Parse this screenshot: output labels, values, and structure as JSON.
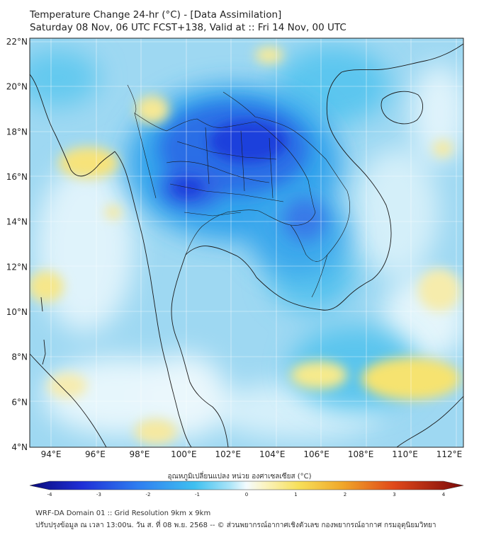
{
  "title_line1": "Temperature Change 24-hr (°C) - [Data Assimilation]",
  "title_line2": "Saturday 08 Nov, 06 UTC FCST+138, Valid at :: Fri 14 Nov, 00 UTC",
  "lat_labels": [
    "22°N",
    "20°N",
    "18°N",
    "16°N",
    "14°N",
    "12°N",
    "10°N",
    "8°N",
    "6°N",
    "4°N"
  ],
  "lon_labels": [
    "94°E",
    "96°E",
    "98°E",
    "100°E",
    "102°E",
    "104°E",
    "106°E",
    "108°E",
    "110°E",
    "112°E"
  ],
  "colorbar": {
    "caption": "อุณหภูมิเปลี่ยนแปลง หน่วย องศาเซลเซียส (°C)",
    "ticks": [
      "-4",
      "-3",
      "-2",
      "-1",
      "0",
      "1",
      "2",
      "3",
      "4"
    ],
    "range": [
      -4,
      4
    ]
  },
  "footer_line1": "WRF-DA Domain 01 :: Grid Resolution 9km x 9km",
  "footer_line2": "ปรับปรุงข้อมูล ณ เวลา 13:00น. วัน ส. ที่ 08 พ.ย. 2568 -- © ส่วนพยากรณ์อากาศเชิงตัวเลข กองพยากรณ์อากาศ กรมอุตุนิยมวิทยา",
  "colors": {
    "base_field": "#a8dcf4",
    "cold_core": "#1a3fd8",
    "warm_patch": "#f4e77a",
    "neutral": "#e8f6fc"
  }
}
